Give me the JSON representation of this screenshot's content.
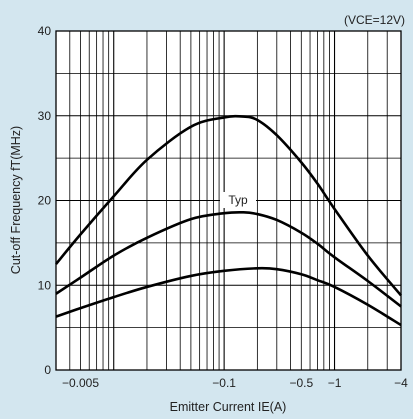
{
  "chart_data": {
    "type": "line",
    "title": "",
    "condition": "(VCE=12V)",
    "xlabel": "Emitter Current IE(A)",
    "ylabel": "Cut-off Frequency fT(MHz)",
    "x_scale": "log",
    "xlim": [
      -0.003,
      -4
    ],
    "ylim": [
      0,
      40
    ],
    "grid": true,
    "x_ticks": [
      {
        "value": -0.005,
        "label": "−0.005"
      },
      {
        "value": -0.1,
        "label": "−0.1"
      },
      {
        "value": -0.5,
        "label": "−0.5"
      },
      {
        "value": -1,
        "label": "−1"
      },
      {
        "value": -4,
        "label": "−4"
      }
    ],
    "y_ticks": [
      {
        "value": 0,
        "label": "0"
      },
      {
        "value": 10,
        "label": "10"
      },
      {
        "value": 20,
        "label": "20"
      },
      {
        "value": 30,
        "label": "30"
      },
      {
        "value": 40,
        "label": "40"
      }
    ],
    "annotation": "Typ",
    "series": [
      {
        "x": [
          -0.003,
          -0.005,
          -0.01,
          -0.02,
          -0.05,
          -0.1,
          -0.15,
          -0.2,
          -0.3,
          -0.5,
          -0.7,
          -1,
          -2,
          -4
        ],
        "y": [
          12.5,
          16.0,
          20.5,
          24.8,
          28.7,
          29.8,
          29.9,
          29.5,
          27.7,
          24.5,
          22.0,
          19.0,
          13.5,
          8.8
        ]
      },
      {
        "x": [
          -0.003,
          -0.005,
          -0.01,
          -0.02,
          -0.05,
          -0.1,
          -0.15,
          -0.2,
          -0.3,
          -0.5,
          -0.7,
          -1,
          -2,
          -4
        ],
        "y": [
          9.0,
          10.9,
          13.5,
          15.6,
          17.8,
          18.5,
          18.6,
          18.4,
          17.7,
          16.2,
          14.9,
          13.3,
          10.5,
          7.5
        ]
      },
      {
        "x": [
          -0.003,
          -0.005,
          -0.01,
          -0.02,
          -0.05,
          -0.1,
          -0.2,
          -0.3,
          -0.5,
          -0.7,
          -1,
          -2,
          -4
        ],
        "y": [
          6.3,
          7.3,
          8.6,
          9.8,
          11.1,
          11.7,
          12.0,
          11.9,
          11.3,
          10.6,
          9.8,
          7.7,
          5.3
        ]
      }
    ]
  }
}
